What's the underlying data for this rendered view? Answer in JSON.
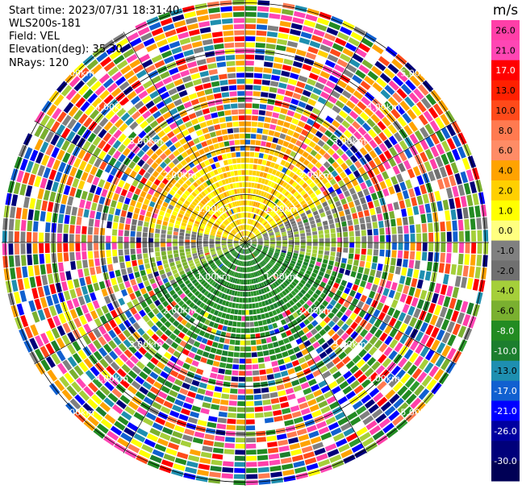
{
  "header": {
    "start_time": "Start time: 2023/07/31 18:31:40",
    "instrument": "WLS200s-181",
    "field": "Field: VEL",
    "elevation": "Elevation(deg): 35.30",
    "nrays": "NRays: 120"
  },
  "chart_data": {
    "type": "heatmap",
    "projection": "polar-ppi",
    "field": "VEL",
    "units": "m/s",
    "n_rays": 120,
    "range_rings_km": [
      "1.00km",
      "2.00km",
      "3.00km",
      "4.00km",
      "5.00km"
    ],
    "colorbar": {
      "label": "m/s",
      "ticks": [
        "26.0",
        "21.0",
        "17.0",
        "13.0",
        "10.0",
        "8.0",
        "6.0",
        "4.0",
        "2.0",
        "1.0",
        "0.0",
        "-1.0",
        "-2.0",
        "-4.0",
        "-6.0",
        "-8.0",
        "-10.0",
        "-13.0",
        "-17.0",
        "-21.0",
        "-26.0",
        "-30.0"
      ],
      "colors": [
        "#ff3fa8",
        "#ff46b4",
        "#ff0000",
        "#ff2000",
        "#ff4a1a",
        "#ff7a50",
        "#ff8c66",
        "#ffa300",
        "#ffd000",
        "#ffff00",
        "#ffff80",
        "#808080",
        "#707070",
        "#a5cf3a",
        "#7ab030",
        "#228b22",
        "#1c7e2e",
        "#1e8fb0",
        "#1060d0",
        "#0000ff",
        "#0000a0",
        "#00007a",
        "#000055"
      ]
    },
    "pattern": {
      "near_field": "orange/yellow toward north (positive), green toward south (negative), gray near zero east-west",
      "far_field": "noisy multicolored speckle beyond ~2.5km"
    }
  }
}
